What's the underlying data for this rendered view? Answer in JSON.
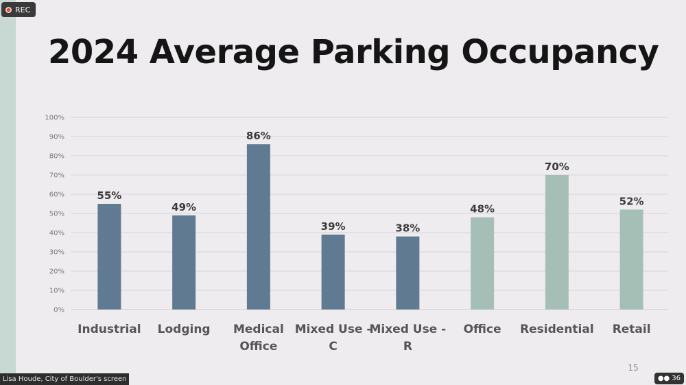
{
  "recording": {
    "label": "REC"
  },
  "slide": {
    "title": "2024 Average Parking Occupancy",
    "page_number": "15"
  },
  "meeting": {
    "screen_share_label": "Lisa Houde, City of Boulder's screen",
    "participant_count": "36"
  },
  "colors": {
    "dark_bar": "#5f7a91",
    "light_bar": "#a6bfb6",
    "background": "#eeecef",
    "grid": "#d7d5d9"
  },
  "chart_data": {
    "type": "bar",
    "title": "",
    "xlabel": "",
    "ylabel": "",
    "ylim": [
      0,
      100
    ],
    "y_ticks": [
      "0%",
      "10%",
      "20%",
      "30%",
      "40%",
      "50%",
      "60%",
      "70%",
      "80%",
      "90%",
      "100%"
    ],
    "grid": true,
    "categories": [
      [
        "Industrial"
      ],
      [
        "Lodging"
      ],
      [
        "Medical",
        "Office"
      ],
      [
        "Mixed Use -",
        "C"
      ],
      [
        "Mixed Use -",
        "R"
      ],
      [
        "Office"
      ],
      [
        "Residential"
      ],
      [
        "Retail"
      ]
    ],
    "values": [
      55,
      49,
      86,
      39,
      38,
      48,
      70,
      52
    ],
    "data_labels": [
      "55%",
      "49%",
      "86%",
      "39%",
      "38%",
      "48%",
      "70%",
      "52%"
    ],
    "bar_color_groups": [
      "dark",
      "dark",
      "dark",
      "dark",
      "dark",
      "light",
      "light",
      "light"
    ]
  }
}
